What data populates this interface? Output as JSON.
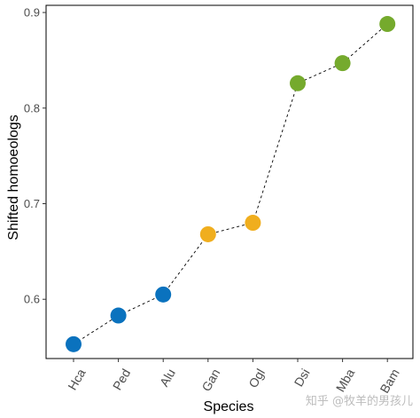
{
  "chart_data": {
    "type": "scatter",
    "xlabel": "Species",
    "ylabel": "Shifted homoeologs",
    "categories": [
      "Hca",
      "Ped",
      "Alu",
      "Gan",
      "Ogl",
      "Dsi",
      "Mba",
      "Bam"
    ],
    "values": [
      0.553,
      0.583,
      0.605,
      0.668,
      0.68,
      0.826,
      0.847,
      0.888
    ],
    "point_colors": [
      "#0a72be",
      "#0a72be",
      "#0a72be",
      "#f0ae1e",
      "#f0ae1e",
      "#75aa2d",
      "#75aa2d",
      "#75aa2d"
    ],
    "connector": "dashed line",
    "ylim": [
      0.538,
      0.9075
    ],
    "yticks": [
      0.6,
      0.7,
      0.8,
      0.9
    ],
    "ytick_labels": [
      "0.6",
      "0.7",
      "0.8",
      "0.9"
    ],
    "grid": false,
    "legend": "none",
    "x_tick_rotation_deg": 60
  },
  "watermark": "知乎 @牧羊的男孩儿"
}
